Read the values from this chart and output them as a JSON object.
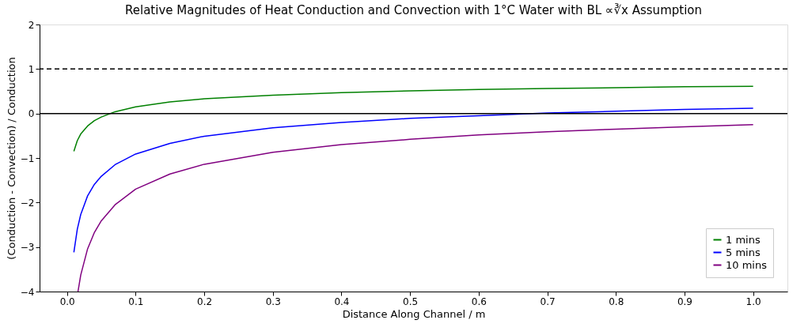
{
  "chart_data": {
    "type": "line",
    "title": "Relative Magnitudes of Heat Conduction and Convection with 1°C Water with BL ∝∛x Assumption",
    "xlabel": "Distance Along Channel / m",
    "ylabel": "(Conduction - Convection) / Conduction",
    "x": [
      0.01,
      0.015,
      0.02,
      0.03,
      0.04,
      0.05,
      0.07,
      0.1,
      0.15,
      0.2,
      0.3,
      0.4,
      0.5,
      0.6,
      0.7,
      0.8,
      0.9,
      1.0
    ],
    "series": [
      {
        "name": "1 mins",
        "color": "#008000",
        "values": [
          -0.85,
          -0.61,
          -0.46,
          -0.28,
          -0.16,
          -0.08,
          0.04,
          0.15,
          0.26,
          0.33,
          0.41,
          0.47,
          0.51,
          0.54,
          0.56,
          0.58,
          0.6,
          0.61
        ]
      },
      {
        "name": "5 mins",
        "color": "#0000ff",
        "values": [
          -3.12,
          -2.6,
          -2.27,
          -1.85,
          -1.59,
          -1.41,
          -1.15,
          -0.91,
          -0.67,
          -0.51,
          -0.32,
          -0.2,
          -0.11,
          -0.05,
          0.01,
          0.05,
          0.09,
          0.12
        ]
      },
      {
        "name": "10 mins",
        "color": "#800080",
        "x": [
          0.016,
          0.02,
          0.03,
          0.04,
          0.05,
          0.07,
          0.1,
          0.15,
          0.2,
          0.3,
          0.4,
          0.5,
          0.6,
          0.7,
          0.8,
          0.9,
          1.0
        ],
        "values": [
          -4.0,
          -3.63,
          -3.04,
          -2.67,
          -2.41,
          -2.05,
          -1.7,
          -1.36,
          -1.14,
          -0.87,
          -0.7,
          -0.58,
          -0.48,
          -0.41,
          -0.35,
          -0.3,
          -0.25
        ]
      }
    ],
    "xlim": [
      -0.04,
      1.05
    ],
    "ylim": [
      -4,
      2
    ],
    "xticks": [
      {
        "value": 0,
        "label": "0.0"
      },
      0.1,
      0.2,
      0.3,
      0.4,
      0.5,
      0.6,
      0.7,
      0.8,
      0.9,
      {
        "value": 1,
        "label": "1.0"
      }
    ],
    "yticks": [
      -4,
      -3,
      -2,
      -1,
      0,
      1,
      2
    ],
    "ref_lines": [
      {
        "axis": "y",
        "value": 1,
        "color": "#000000",
        "line_style": "dashed"
      },
      {
        "axis": "y",
        "value": 0,
        "color": "#000000",
        "line_style": "solid"
      }
    ],
    "grid": false,
    "legend": "bottom right",
    "marker": "none",
    "line_style": "solid"
  }
}
